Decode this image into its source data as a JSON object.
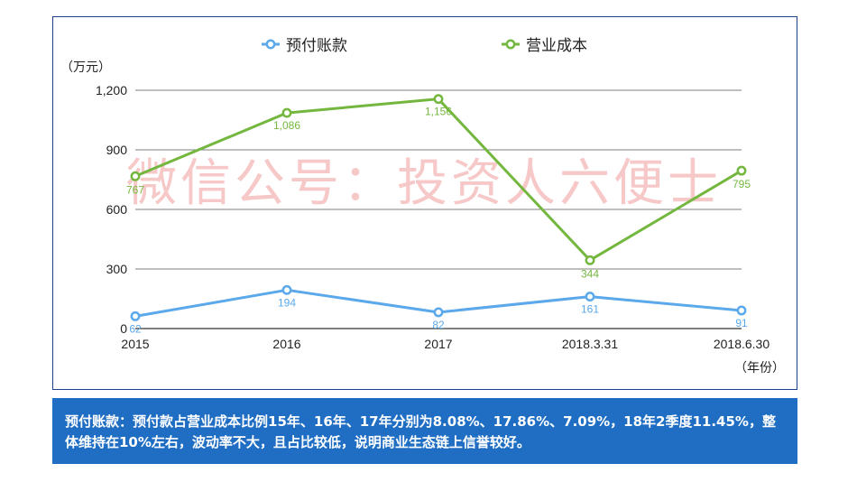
{
  "chart_data": {
    "type": "line",
    "categories": [
      "2015",
      "2016",
      "2017",
      "2018.3.31",
      "2018.6.30"
    ],
    "series": [
      {
        "name": "预付账款",
        "values": [
          62,
          194,
          82,
          161,
          91
        ],
        "color": "#5ba8ea"
      },
      {
        "name": "营业成本",
        "values": [
          767,
          1086,
          1156,
          344,
          795
        ],
        "color": "#74b73f"
      }
    ],
    "data_labels": {
      "预付账款": [
        "62",
        "194",
        "82",
        "161",
        "91"
      ],
      "营业成本": [
        "767",
        "1,086",
        "1,156",
        "344",
        "795"
      ]
    },
    "ylim": [
      0,
      1200
    ],
    "yticks": [
      0,
      300,
      600,
      900,
      1200
    ],
    "ytick_labels": [
      "0",
      "300",
      "600",
      "900",
      "1,200"
    ],
    "ylabel": "（万元）",
    "xlabel": "（年份）",
    "grid": true,
    "legend_position": "top"
  },
  "watermark": "微信公号：投资人六便士",
  "note": {
    "text": "预付账款：预付款占营业成本比例15年、16年、17年分别为8.08%、17.86%、7.09%，18年2季度11.45%，整体维持在10%左右，波动率不大，且占比较低，说明商业生态链上信誉较好。"
  },
  "colors": {
    "frame_border": "#1e3f8a",
    "note_background": "#1f6ec4",
    "watermark": "#f6c8c8"
  }
}
